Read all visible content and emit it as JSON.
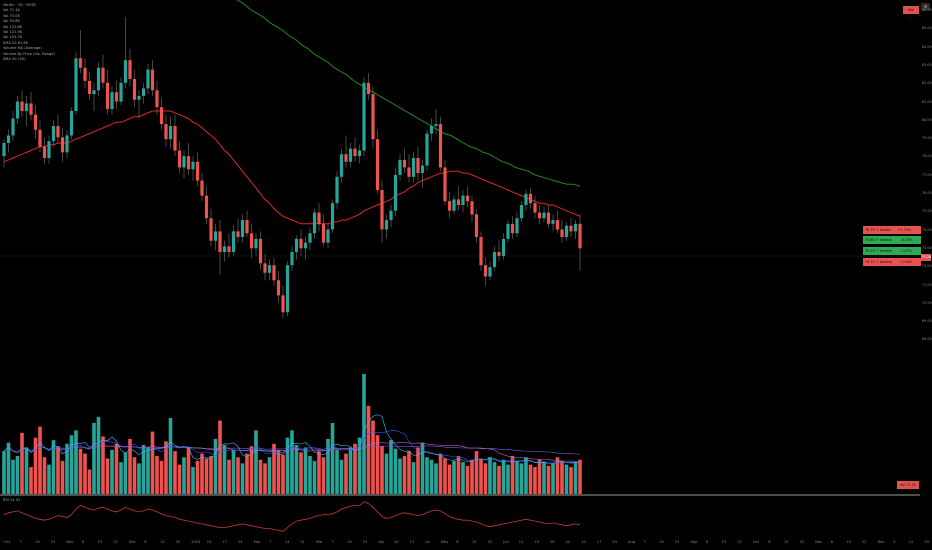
{
  "legend": {
    "lines": [
      "Veritiv · 1D · NYSE",
      "Vol 71.1K",
      "Vol 75.0K",
      "Vol 93.8K",
      "Vol 120.8K",
      "Vol 121.9K",
      "Vol 155.7K",
      "SMA 20 61.6K",
      "Volume MA (Average)",
      "Volume By Price (Vis. Range)",
      "SMA 50 (1D)"
    ]
  },
  "header": {
    "settings_label": "⚙",
    "alert_tag": "Sell Signal"
  },
  "level_tags": [
    {
      "left": "76.79 ↑ bullish (avg)",
      "right": "+1.75% (avg)",
      "color": "red"
    },
    {
      "left": "75.65 ↑ bearish (avg) 15",
      "right": "-0.73% (avg)",
      "color": "green"
    },
    {
      "left": "75.23 ↑ bearish (avg) 1",
      "right": "-1.47% (avg)",
      "color": "green"
    },
    {
      "left": "74.70 ↑ bearish (avg) 5",
      "right": "-1.94% (avg)",
      "color": "red"
    }
  ],
  "price_tag": "73.28",
  "volume_tag": "Vol 71.1K",
  "oscillator_label": "RSI 14 41",
  "y_axis": [
    "86.00",
    "85.00",
    "84.00",
    "83.00",
    "82.00",
    "81.00",
    "80.00",
    "79.00",
    "78.00",
    "77.00",
    "76.00",
    "75.00",
    "74.00",
    "73.00",
    "72.00",
    "71.00",
    "70.00",
    "69.00",
    "68.00"
  ],
  "x_axis": [
    "Oct",
    "7",
    "14",
    "21",
    "Nov",
    "8",
    "15",
    "22",
    "Dec",
    "6",
    "13",
    "20",
    "2023",
    "10",
    "17",
    "24",
    "Feb",
    "7",
    "14",
    "21",
    "Mar",
    "7",
    "14",
    "21",
    "Apr",
    "10",
    "17",
    "24",
    "May",
    "8",
    "15",
    "22",
    "Jun",
    "12",
    "19",
    "26",
    "Jul",
    "10",
    "17",
    "24",
    "Aug",
    "7",
    "14",
    "21",
    "Sep",
    "8",
    "15",
    "22",
    "Oct",
    "8",
    "15",
    "22",
    "Nov",
    "8",
    "15",
    "22",
    "Dec",
    "5",
    "12",
    "19"
  ],
  "chart_data": {
    "type": "candlestick",
    "ylim": [
      68,
      86.5
    ],
    "colors": {
      "up": "#26a69a",
      "down": "#ef5350",
      "ma_short": "#e02828",
      "ma_long": "#1e8c1e",
      "rsi": "#c23a3a",
      "vol_ma": [
        "#7b5cd6",
        "#c05cc0",
        "#2d5cff",
        "#3fb2ff"
      ]
    },
    "candles": [
      [
        78.2,
        79.1,
        77.6,
        78.9
      ],
      [
        78.9,
        79.6,
        78.4,
        79.3
      ],
      [
        79.3,
        80.6,
        79.0,
        80.2
      ],
      [
        80.2,
        81.4,
        79.9,
        81.1
      ],
      [
        81.1,
        81.7,
        80.3,
        80.6
      ],
      [
        80.6,
        81.4,
        79.8,
        81.0
      ],
      [
        81.0,
        81.6,
        80.1,
        80.4
      ],
      [
        80.4,
        80.9,
        79.1,
        79.6
      ],
      [
        79.6,
        80.1,
        78.4,
        78.7
      ],
      [
        78.7,
        79.2,
        77.8,
        78.1
      ],
      [
        78.1,
        79.3,
        77.8,
        79.0
      ],
      [
        79.0,
        80.1,
        78.7,
        79.8
      ],
      [
        79.8,
        80.4,
        78.9,
        79.2
      ],
      [
        79.2,
        79.7,
        77.9,
        78.4
      ],
      [
        78.4,
        79.6,
        78.1,
        79.3
      ],
      [
        79.3,
        80.8,
        79.1,
        80.6
      ],
      [
        80.6,
        83.7,
        80.4,
        83.4
      ],
      [
        83.4,
        84.9,
        82.6,
        82.9
      ],
      [
        82.9,
        83.4,
        81.8,
        82.2
      ],
      [
        82.2,
        82.7,
        81.2,
        81.5
      ],
      [
        81.5,
        82.1,
        80.6,
        81.7
      ],
      [
        81.7,
        83.2,
        81.4,
        82.9
      ],
      [
        82.9,
        83.6,
        81.8,
        82.1
      ],
      [
        82.1,
        82.8,
        80.4,
        80.7
      ],
      [
        80.7,
        81.9,
        80.4,
        81.6
      ],
      [
        81.6,
        82.2,
        80.7,
        81.1
      ],
      [
        81.1,
        82.4,
        80.9,
        82.1
      ],
      [
        82.1,
        85.6,
        81.8,
        83.3
      ],
      [
        83.3,
        83.9,
        81.9,
        82.3
      ],
      [
        82.3,
        82.8,
        80.8,
        81.2
      ],
      [
        81.2,
        81.7,
        80.2,
        81.4
      ],
      [
        81.4,
        82.1,
        81.0,
        81.8
      ],
      [
        81.8,
        83.1,
        81.5,
        82.8
      ],
      [
        82.8,
        83.3,
        81.4,
        81.7
      ],
      [
        81.7,
        82.2,
        80.4,
        80.8
      ],
      [
        80.8,
        81.3,
        79.6,
        79.9
      ],
      [
        79.9,
        80.4,
        78.7,
        79.1
      ],
      [
        79.1,
        80.3,
        78.6,
        79.8
      ],
      [
        79.8,
        80.4,
        78.2,
        78.5
      ],
      [
        78.5,
        79.0,
        77.3,
        77.6
      ],
      [
        77.6,
        78.5,
        77.0,
        78.2
      ],
      [
        78.2,
        78.9,
        77.2,
        77.5
      ],
      [
        77.5,
        78.2,
        76.9,
        77.9
      ],
      [
        77.9,
        78.4,
        76.6,
        76.9
      ],
      [
        76.9,
        77.3,
        75.8,
        76.1
      ],
      [
        76.1,
        76.6,
        74.6,
        74.9
      ],
      [
        74.9,
        75.4,
        73.4,
        73.7
      ],
      [
        73.7,
        74.6,
        73.2,
        74.2
      ],
      [
        74.2,
        74.8,
        71.9,
        73.1
      ],
      [
        73.1,
        73.7,
        72.6,
        73.4
      ],
      [
        73.4,
        74.1,
        72.8,
        73.1
      ],
      [
        73.1,
        74.5,
        72.9,
        74.2
      ],
      [
        74.2,
        74.9,
        73.6,
        73.9
      ],
      [
        73.9,
        75.1,
        73.6,
        74.8
      ],
      [
        74.8,
        75.3,
        73.9,
        74.1
      ],
      [
        74.1,
        74.6,
        72.8,
        73.3
      ],
      [
        73.3,
        74.1,
        72.9,
        73.8
      ],
      [
        73.8,
        74.2,
        72.2,
        72.5
      ],
      [
        72.5,
        73.0,
        71.6,
        72.0
      ],
      [
        72.0,
        72.7,
        71.6,
        72.4
      ],
      [
        72.4,
        72.8,
        71.3,
        71.6
      ],
      [
        71.6,
        72.1,
        70.4,
        70.8
      ],
      [
        70.8,
        71.3,
        69.6,
        69.9
      ],
      [
        69.9,
        72.6,
        69.7,
        72.4
      ],
      [
        72.4,
        73.4,
        72.1,
        73.1
      ],
      [
        73.1,
        74.0,
        72.7,
        73.8
      ],
      [
        73.8,
        74.3,
        72.9,
        73.3
      ],
      [
        73.3,
        73.9,
        72.7,
        73.6
      ],
      [
        73.6,
        74.4,
        73.2,
        74.1
      ],
      [
        74.1,
        75.4,
        73.8,
        75.2
      ],
      [
        75.2,
        75.7,
        74.2,
        74.6
      ],
      [
        74.6,
        75.1,
        73.4,
        73.6
      ],
      [
        73.6,
        74.6,
        73.3,
        74.3
      ],
      [
        74.3,
        75.9,
        74.1,
        75.7
      ],
      [
        75.7,
        77.4,
        75.4,
        77.1
      ],
      [
        77.1,
        78.6,
        76.8,
        78.3
      ],
      [
        78.3,
        79.3,
        77.6,
        77.9
      ],
      [
        77.9,
        78.9,
        77.6,
        78.6
      ],
      [
        78.6,
        79.2,
        77.9,
        78.2
      ],
      [
        78.2,
        78.8,
        77.8,
        78.5
      ],
      [
        78.5,
        82.4,
        78.2,
        82.1
      ],
      [
        82.1,
        82.6,
        81.2,
        81.5
      ],
      [
        81.5,
        81.9,
        78.6,
        79.1
      ],
      [
        79.1,
        79.6,
        76.2,
        76.4
      ],
      [
        76.4,
        76.9,
        73.6,
        74.3
      ],
      [
        74.3,
        75.1,
        73.8,
        74.8
      ],
      [
        74.8,
        75.6,
        74.4,
        75.3
      ],
      [
        75.3,
        77.6,
        75.0,
        77.2
      ],
      [
        77.2,
        78.3,
        76.9,
        78.0
      ],
      [
        78.0,
        78.6,
        77.3,
        77.6
      ],
      [
        77.6,
        78.3,
        76.8,
        77.1
      ],
      [
        77.1,
        78.4,
        76.8,
        78.1
      ],
      [
        78.1,
        78.7,
        76.9,
        77.3
      ],
      [
        77.3,
        78.0,
        76.5,
        77.7
      ],
      [
        77.7,
        79.6,
        77.4,
        79.4
      ],
      [
        79.4,
        80.2,
        79.0,
        79.8
      ],
      [
        79.8,
        80.7,
        79.4,
        79.9
      ],
      [
        79.9,
        80.3,
        77.4,
        77.6
      ],
      [
        77.6,
        78.0,
        75.6,
        75.8
      ],
      [
        75.8,
        76.3,
        74.9,
        75.3
      ],
      [
        75.3,
        76.1,
        75.1,
        75.9
      ],
      [
        75.9,
        76.6,
        75.3,
        75.6
      ],
      [
        75.6,
        76.4,
        75.2,
        76.1
      ],
      [
        76.1,
        76.6,
        75.5,
        75.8
      ],
      [
        75.8,
        76.1,
        74.7,
        75.1
      ],
      [
        75.1,
        75.4,
        73.6,
        73.9
      ],
      [
        73.9,
        74.2,
        72.1,
        72.4
      ],
      [
        72.4,
        72.8,
        71.3,
        71.8
      ],
      [
        71.8,
        72.6,
        71.6,
        72.3
      ],
      [
        72.3,
        73.4,
        72.1,
        73.1
      ],
      [
        73.1,
        73.7,
        72.6,
        72.9
      ],
      [
        72.9,
        74.1,
        72.7,
        73.8
      ],
      [
        73.8,
        74.8,
        73.6,
        74.6
      ],
      [
        74.6,
        75.0,
        73.8,
        74.1
      ],
      [
        74.1,
        75.2,
        73.9,
        74.9
      ],
      [
        74.9,
        75.8,
        74.7,
        75.6
      ],
      [
        75.6,
        76.4,
        75.3,
        76.2
      ],
      [
        76.2,
        76.5,
        75.4,
        75.7
      ],
      [
        75.7,
        76.1,
        74.9,
        75.2
      ],
      [
        75.2,
        75.6,
        74.6,
        74.9
      ],
      [
        74.9,
        75.5,
        74.7,
        75.2
      ],
      [
        75.2,
        75.6,
        74.4,
        74.6
      ],
      [
        74.6,
        75.1,
        74.2,
        74.8
      ],
      [
        74.8,
        75.3,
        74.1,
        74.3
      ],
      [
        74.3,
        74.8,
        73.6,
        73.9
      ],
      [
        73.9,
        74.7,
        73.7,
        74.5
      ],
      [
        74.5,
        74.9,
        73.9,
        74.2
      ],
      [
        74.2,
        74.8,
        73.8,
        74.6
      ],
      [
        74.6,
        75.1,
        72.1,
        73.3
      ]
    ],
    "ma_short": [
      77.9,
      78.0,
      78.1,
      78.2,
      78.3,
      78.4,
      78.5,
      78.6,
      78.7,
      78.7,
      78.8,
      78.8,
      78.9,
      78.9,
      78.9,
      79.0,
      79.1,
      79.2,
      79.3,
      79.4,
      79.5,
      79.6,
      79.7,
      79.8,
      79.9,
      80.0,
      80.0,
      80.1,
      80.2,
      80.3,
      80.3,
      80.4,
      80.5,
      80.6,
      80.6,
      80.6,
      80.6,
      80.6,
      80.5,
      80.4,
      80.3,
      80.2,
      80.0,
      79.9,
      79.7,
      79.5,
      79.3,
      79.1,
      78.8,
      78.5,
      78.3,
      78.0,
      77.7,
      77.4,
      77.1,
      76.8,
      76.5,
      76.2,
      75.9,
      75.7,
      75.4,
      75.2,
      75.0,
      74.9,
      74.8,
      74.7,
      74.6,
      74.6,
      74.6,
      74.6,
      74.6,
      74.6,
      74.6,
      74.7,
      74.7,
      74.8,
      74.8,
      74.9,
      75.0,
      75.1,
      75.3,
      75.4,
      75.5,
      75.6,
      75.7,
      75.8,
      75.9,
      76.1,
      76.2,
      76.3,
      76.5,
      76.6,
      76.8,
      76.9,
      77.0,
      77.1,
      77.2,
      77.3,
      77.3,
      77.4,
      77.4,
      77.4,
      77.3,
      77.3,
      77.2,
      77.1,
      77.0,
      76.9,
      76.8,
      76.7,
      76.6,
      76.5,
      76.4,
      76.3,
      76.2,
      76.1,
      76.0,
      75.9,
      75.8,
      75.7,
      75.7,
      75.6,
      75.6,
      75.5,
      75.4,
      75.3,
      75.2,
      75.1,
      75.0
    ],
    "ma_long": [
      88.2,
      88.0,
      87.8,
      87.5,
      87.3,
      87.0,
      86.8,
      86.5,
      86.3,
      86.0,
      85.8,
      85.6,
      85.3,
      85.1,
      84.9,
      84.6,
      84.4,
      84.1,
      83.9,
      83.6,
      83.4,
      83.2,
      82.9,
      82.7,
      82.5,
      82.2,
      82.0,
      81.8,
      81.6,
      81.4,
      81.2,
      81.0,
      80.8,
      80.6,
      80.4,
      80.2,
      80.0,
      79.8,
      79.6,
      79.4,
      79.3,
      79.1,
      78.9,
      78.7,
      78.6,
      78.4,
      78.3,
      78.1,
      77.9,
      77.8,
      77.6,
      77.5,
      77.4,
      77.2,
      77.1,
      77.0,
      76.9,
      76.8,
      76.7,
      76.7,
      76.6
    ],
    "volumes": [
      35,
      42,
      28,
      31,
      50,
      38,
      22,
      46,
      55,
      30,
      24,
      44,
      39,
      27,
      41,
      48,
      52,
      37,
      33,
      20,
      58,
      63,
      47,
      29,
      36,
      41,
      26,
      34,
      45,
      30,
      25,
      40,
      38,
      51,
      31,
      27,
      43,
      62,
      35,
      24,
      30,
      38,
      22,
      27,
      33,
      29,
      31,
      45,
      60,
      40,
      28,
      36,
      30,
      25,
      33,
      39,
      52,
      28,
      25,
      30,
      41,
      36,
      32,
      46,
      52,
      40,
      34,
      38,
      31,
      27,
      35,
      30,
      45,
      58,
      36,
      28,
      33,
      38,
      41,
      46,
      98,
      72,
      60,
      48,
      39,
      33,
      44,
      37,
      29,
      31,
      35,
      26,
      38,
      42,
      30,
      28,
      25,
      33,
      29,
      24,
      27,
      31,
      26,
      23,
      28,
      35,
      29,
      25,
      30,
      26,
      23,
      28,
      24,
      31,
      27,
      25,
      30,
      24,
      22,
      28,
      26,
      23,
      25,
      30,
      27,
      24,
      22,
      26,
      28
    ],
    "rsi": [
      52,
      54,
      55,
      56,
      54,
      52,
      50,
      48,
      47,
      46,
      47,
      49,
      51,
      50,
      49,
      52,
      58,
      62,
      60,
      58,
      57,
      59,
      60,
      58,
      56,
      55,
      57,
      60,
      58,
      56,
      55,
      56,
      58,
      57,
      55,
      53,
      51,
      50,
      49,
      47,
      46,
      45,
      44,
      43,
      42,
      41,
      40,
      39,
      38,
      38,
      39,
      40,
      41,
      42,
      41,
      40,
      39,
      38,
      37,
      37,
      36,
      35,
      34,
      38,
      42,
      45,
      46,
      47,
      48,
      50,
      51,
      52,
      52,
      53,
      55,
      58,
      60,
      61,
      62,
      62,
      66,
      64,
      60,
      55,
      50,
      48,
      49,
      51,
      53,
      54,
      53,
      52,
      51,
      52,
      54,
      56,
      57,
      56,
      53,
      50,
      48,
      47,
      46,
      46,
      45,
      44,
      42,
      40,
      39,
      40,
      41,
      42,
      43,
      44,
      45,
      46,
      47,
      46,
      45,
      44,
      43,
      42,
      43,
      42,
      41,
      40,
      41,
      42,
      41
    ]
  }
}
